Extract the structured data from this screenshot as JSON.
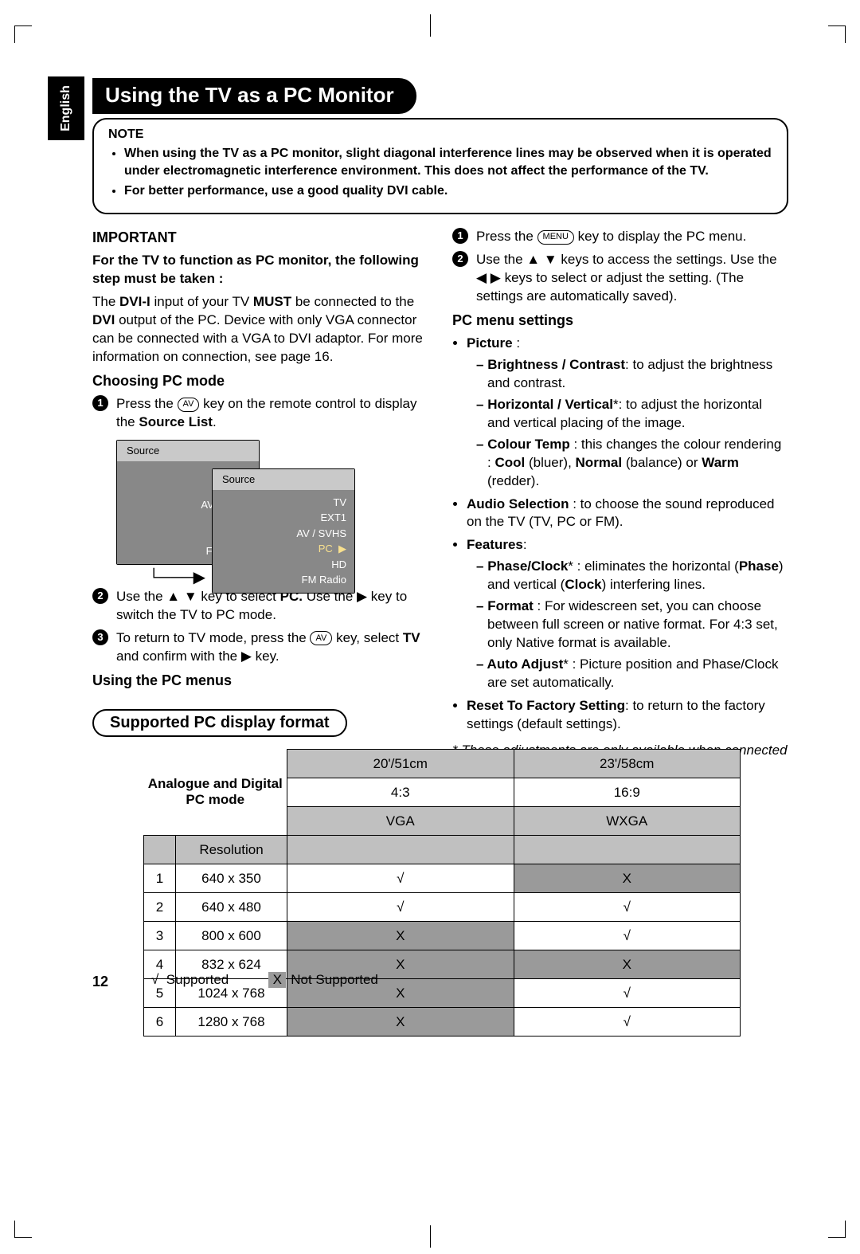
{
  "language_tab": "English",
  "page_title": "Using the TV as a PC Monitor",
  "note": {
    "heading": "NOTE",
    "items": [
      "When using the TV as a PC monitor, slight diagonal interference lines may be observed when it is operated under electromagnetic interference environment. This does not affect the performance of the TV.",
      "For better performance, use a good quality DVI cable."
    ]
  },
  "important": {
    "heading": "IMPORTANT",
    "lead": "For the TV to function as PC monitor, the following step must be taken :",
    "body_pre": "The ",
    "body_dvi": "DVI-I",
    "body_mid": " input of your TV ",
    "body_must": "MUST",
    "body_post": " be connected to the ",
    "body_dvi2": "DVI",
    "body_tail": " output of the PC. Device with only VGA connector can be connected with a VGA to DVI adaptor. For more information on connection, see page 16."
  },
  "choosing": {
    "heading": "Choosing PC mode",
    "step1_a": "Press the ",
    "step1_key": "AV",
    "step1_b": " key on the remote control to display the ",
    "step1_bold": "Source List",
    "step1_c": ".",
    "step2_a": "Use the ▲ ▼ key to select ",
    "step2_pc": "PC.",
    "step2_b": " Use the ▶ key to switch the TV to PC mode.",
    "step3_a": "To return to TV mode, press the ",
    "step3_key": "AV",
    "step3_b": " key, select ",
    "step3_tv": "TV",
    "step3_c": " and confirm with the ▶ key."
  },
  "using_menus_heading": "Using the PC menus",
  "source_menu": {
    "title": "Source",
    "items": [
      "TV",
      "EXT1",
      "AV / SVHS",
      "PC",
      "HD",
      "FM Radio"
    ]
  },
  "right": {
    "step1_a": "Press the ",
    "step1_key": "MENU",
    "step1_b": " key to display the PC menu.",
    "step2": "Use the ▲ ▼ keys to access the settings. Use the ◀  ▶  keys to select or adjust the setting. (The settings are automatically saved).",
    "heading": "PC menu settings",
    "picture": "Picture",
    "pic_items": {
      "b1_bold": "Brightness / Contrast",
      "b1": ": to adjust the brightness and contrast.",
      "b2_bold": "Horizontal / Vertical",
      "b2_star": "*",
      "b2": ": to adjust the horizontal and vertical placing of the image.",
      "b3_bold": "Colour Temp",
      "b3": " : this changes the colour rendering : ",
      "b3_cool": "Cool",
      "b3_cool_t": " (bluer), ",
      "b3_norm": "Normal",
      "b3_norm_t": " (balance) or ",
      "b3_warm": "Warm",
      "b3_warm_t": " (redder)."
    },
    "audio_bold": "Audio Selection",
    "audio": " : to choose the sound reproduced on the TV (TV, PC or FM).",
    "features": "Features",
    "feat": {
      "f1_bold": "Phase/Clock",
      "f1_star": "*",
      "f1": " : eliminates the horizontal (",
      "f1_phase": "Phase",
      "f1_mid": ") and vertical (",
      "f1_clock": "Clock",
      "f1_end": ") interfering lines.",
      "f2_bold": "Format",
      "f2": " : For widescreen set, you can choose between full screen or native format. For 4:3 set, only Native format is available.",
      "f3_bold": "Auto Adjust",
      "f3_star": "*",
      "f3": " : Picture position and Phase/Clock are set automatically."
    },
    "reset_bold": "Reset To Factory Setting",
    "reset": ": to return to the factory settings (default settings).",
    "footnote": "* These adjustments are only available when connected to a computer with VGA output."
  },
  "supported_heading": "Supported PC display format",
  "table": {
    "mode_label": "Analogue and Digital PC mode",
    "col_a": "20'/51cm",
    "col_b": "23'/58cm",
    "ratio_a": "4:3",
    "ratio_b": "16:9",
    "type_a": "VGA",
    "type_b": "WXGA",
    "res_label": "Resolution",
    "rows": [
      {
        "n": "1",
        "res": "640 x 350",
        "a": "√",
        "b": "X",
        "bx": true
      },
      {
        "n": "2",
        "res": "640 x 480",
        "a": "√",
        "b": "√"
      },
      {
        "n": "3",
        "res": "800 x 600",
        "a": "X",
        "ax": true,
        "b": "√"
      },
      {
        "n": "4",
        "res": "832 x 624",
        "a": "X",
        "ax": true,
        "b": "X",
        "bx": true
      },
      {
        "n": "5",
        "res": "1024 x 768",
        "a": "X",
        "ax": true,
        "b": "√"
      },
      {
        "n": "6",
        "res": "1280 x 768",
        "a": "X",
        "ax": true,
        "b": "√"
      }
    ]
  },
  "legend": {
    "sup": "Supported",
    "nsup": "Not Supported",
    "check": "√",
    "x": "X"
  },
  "page_number": "12"
}
